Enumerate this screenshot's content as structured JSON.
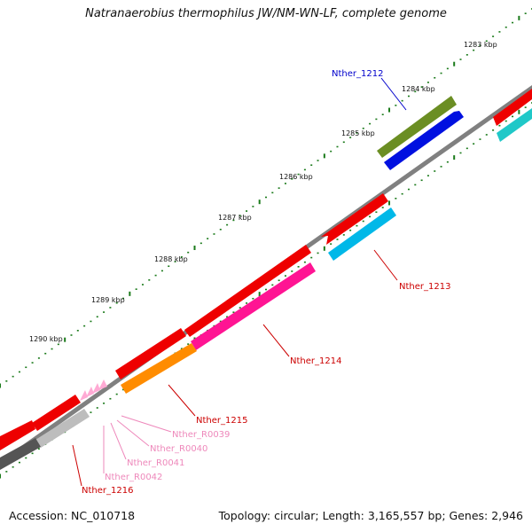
{
  "title": "Natranaerobius thermophilus JW/NM-WN-LF, complete genome",
  "scale_labels": [
    {
      "kbp": 1283,
      "text": "1283 kbp"
    },
    {
      "kbp": 1284,
      "text": "1284 kbp"
    },
    {
      "kbp": 1285,
      "text": "1285 kbp"
    },
    {
      "kbp": 1286,
      "text": "1286 kbp"
    },
    {
      "kbp": 1287,
      "text": "1287 kbp"
    },
    {
      "kbp": 1288,
      "text": "1288 kbp"
    },
    {
      "kbp": 1289,
      "text": "1289 kbp"
    },
    {
      "kbp": 1290,
      "text": "1290 kbp"
    }
  ],
  "gene_labels": [
    {
      "text": "Nther_1212",
      "color": "#0000cc"
    },
    {
      "text": "Nther_1213",
      "color": "#cc0000"
    },
    {
      "text": "Nther_1214",
      "color": "#cc0000"
    },
    {
      "text": "Nther_1215",
      "color": "#cc0000"
    },
    {
      "text": "Nther_R0039",
      "color": "#ee88bb"
    },
    {
      "text": "Nther_R0040",
      "color": "#ee88bb"
    },
    {
      "text": "Nther_R0041",
      "color": "#ee88bb"
    },
    {
      "text": "Nther_R0042",
      "color": "#ee88bb"
    },
    {
      "text": "Nther_1216",
      "color": "#cc0000"
    }
  ],
  "colors": {
    "backbone": "#808080",
    "tick": "#1a7a1a",
    "cds": "#ee0000",
    "blue": "#0010e0",
    "olive": "#6b8e23",
    "cyan": "#00b8e8",
    "magenta": "#ff1493",
    "orange": "#ff8c00",
    "teal": "#20d0d0",
    "grey": "#bdbdbd",
    "dark": "#555555",
    "rna": "#ffaad4"
  },
  "footer": {
    "accession": "Accession: NC_010718",
    "summary": "Topology: circular; Length: 3,165,557 bp; Genes: 2,946"
  }
}
